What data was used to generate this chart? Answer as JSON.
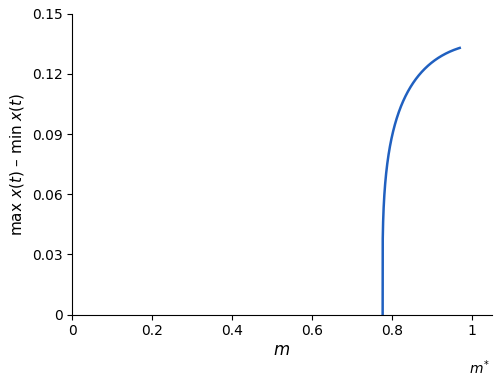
{
  "title": "",
  "xlabel": "m",
  "ylabel": "max x(t) - min x(t)",
  "xlim": [
    0,
    1.05
  ],
  "ylim": [
    0,
    0.15
  ],
  "xticks": [
    0,
    0.2,
    0.4,
    0.6,
    0.8,
    1.0
  ],
  "yticks": [
    0,
    0.03,
    0.06,
    0.09,
    0.12,
    0.15
  ],
  "m_star": 0.777,
  "line_color": "#2060c0",
  "line_width": 1.8,
  "bezier_P0": [
    0.777,
    0.0
  ],
  "bezier_P1": [
    0.777,
    0.06
  ],
  "bezier_P2": [
    0.762,
    0.12
  ],
  "bezier_P3": [
    0.97,
    0.133
  ],
  "figsize": [
    5.0,
    3.85
  ],
  "dpi": 100
}
